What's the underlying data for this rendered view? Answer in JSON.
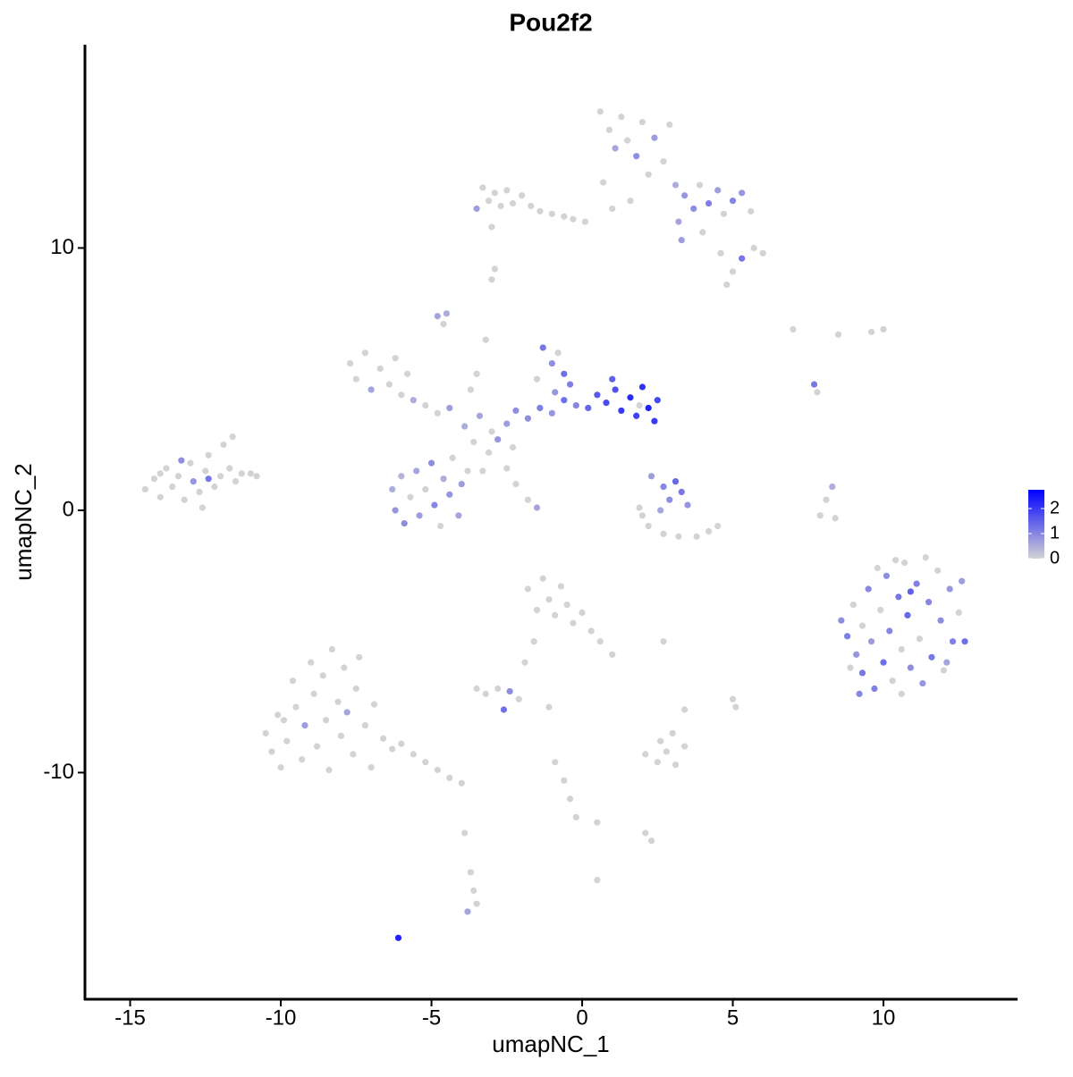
{
  "chart_data": {
    "type": "scatter",
    "title": "Pou2f2",
    "x_label": "umapNC_1",
    "y_label": "umapNC_2",
    "xlim": [
      -16.5,
      14.45
    ],
    "ylim": [
      -18.64,
      17.75
    ],
    "xticks": [
      -15,
      -10,
      -5,
      0,
      5,
      10
    ],
    "yticks": [
      -10,
      0,
      10
    ],
    "color_low": "#d3d3d3",
    "color_high": "#0000ff",
    "colorlim": [
      0,
      2.75
    ],
    "colorticks": [
      0,
      1,
      2
    ],
    "x": [
      -14.5,
      -14.2,
      -14.0,
      -13.8,
      -13.6,
      -13.4,
      -13.2,
      -13.0,
      -12.9,
      -12.7,
      -12.5,
      -12.4,
      -12.2,
      -12.0,
      -11.9,
      -11.7,
      -11.5,
      -11.3,
      -11.0,
      -10.8,
      -13.3,
      -12.6,
      -12.4,
      -14.0,
      -11.6,
      -10.5,
      -10.3,
      -10.1,
      -10.0,
      -9.8,
      -9.6,
      -9.5,
      -9.3,
      -9.2,
      -9.0,
      -8.9,
      -8.8,
      -8.6,
      -8.5,
      -8.4,
      -8.3,
      -8.1,
      -8.0,
      -7.9,
      -7.8,
      -7.6,
      -7.5,
      -7.4,
      -7.2,
      -7.0,
      -6.9,
      -6.6,
      -6.3,
      -6.0,
      -5.6,
      -5.2,
      -4.8,
      -4.4,
      -4.0,
      -9.9,
      -6.3,
      -6.2,
      -6.0,
      -5.9,
      -5.7,
      -5.5,
      -5.4,
      -5.2,
      -5.0,
      -4.9,
      -4.7,
      -4.6,
      -4.4,
      -4.3,
      -4.1,
      -4.0,
      -3.8,
      -7.7,
      -7.5,
      -7.2,
      -7.0,
      -6.7,
      -6.4,
      -6.0,
      -5.6,
      -5.2,
      -4.8,
      -4.4,
      -6.2,
      -5.8,
      -3.9,
      -3.6,
      -3.4,
      -3.1,
      -3.0,
      -2.8,
      -2.5,
      -2.3,
      -2.2,
      -3.3,
      -3.7,
      -3.2,
      -3.5,
      -1.8,
      -1.4,
      -1.0,
      -0.6,
      -0.2,
      0.2,
      0.5,
      0.8,
      1.1,
      1.3,
      1.6,
      1.8,
      2.0,
      2.2,
      2.4,
      2.5,
      1.0,
      1.9,
      -1.3,
      -1.0,
      -0.8,
      -0.6,
      -0.4,
      -1.5,
      -0.9,
      -4.8,
      -4.6,
      -4.5,
      -2.5,
      -2.2,
      -1.8,
      -1.5,
      -3.3,
      -3.1,
      -2.9,
      -2.7,
      -2.5,
      -2.3,
      -2.0,
      -1.7,
      -1.4,
      -1.0,
      -0.6,
      -0.3,
      0.1,
      -3.5,
      -3.0,
      0.6,
      0.9,
      1.1,
      1.3,
      1.5,
      1.8,
      2.0,
      2.2,
      2.4,
      2.7,
      2.9,
      3.1,
      0.7,
      1.0,
      1.6,
      3.4,
      3.7,
      3.9,
      4.2,
      4.5,
      4.7,
      5.0,
      5.3,
      5.6,
      4.0,
      3.2,
      4.6,
      5.0,
      5.3,
      5.7,
      6.0,
      4.8,
      3.3,
      -3.0,
      -2.9,
      2.3,
      2.7,
      2.9,
      3.1,
      3.3,
      3.5,
      2.6,
      2.0,
      2.2,
      2.7,
      3.2,
      3.8,
      4.2,
      4.5,
      1.9,
      8.6,
      8.8,
      9.0,
      9.1,
      9.3,
      9.3,
      9.5,
      9.6,
      9.7,
      9.9,
      10.0,
      10.1,
      10.2,
      10.3,
      10.5,
      10.6,
      10.7,
      10.8,
      10.9,
      11.1,
      11.2,
      11.3,
      11.5,
      11.6,
      11.8,
      11.9,
      12.0,
      12.2,
      12.3,
      12.5,
      12.6,
      12.7,
      9.8,
      10.4,
      11.4,
      8.9,
      10.6,
      12.1,
      9.2,
      10.9,
      -1.8,
      -1.5,
      -1.3,
      -1.1,
      -0.9,
      -0.7,
      -0.5,
      -0.3,
      0.0,
      0.3,
      0.6,
      1.0,
      -1.6,
      -1.9,
      -3.5,
      -3.2,
      -2.8,
      -2.4,
      -2.6,
      -2.1,
      -1.1,
      2.1,
      2.5,
      2.8,
      3.1,
      3.4,
      2.6,
      3.0,
      5.0,
      5.1,
      3.4,
      2.7,
      -0.9,
      -0.6,
      -0.4,
      -0.2,
      0.5,
      2.1,
      2.3,
      -3.7,
      -3.6,
      -3.5,
      -3.8,
      -3.9,
      0.5,
      -6.1,
      7.9,
      8.1,
      8.3,
      8.4,
      9.6,
      10.0,
      8.5,
      7.0,
      7.7,
      7.8
    ],
    "values": [
      0.8,
      1.2,
      0.5,
      1.6,
      0.9,
      1.3,
      0.4,
      1.8,
      1.1,
      0.7,
      1.5,
      2.1,
      0.9,
      1.3,
      2.5,
      1.6,
      1.1,
      1.4,
      1.4,
      1.3,
      1.9,
      0.1,
      1.2,
      1.4,
      2.8,
      -8.5,
      -9.2,
      -7.8,
      -9.8,
      -8.8,
      -6.5,
      -7.5,
      -9.5,
      -8.2,
      -5.8,
      -7.0,
      -9.0,
      -6.3,
      -8.0,
      -9.9,
      -5.3,
      -7.3,
      -8.6,
      -6.0,
      -7.7,
      -9.3,
      -6.8,
      -5.6,
      -8.2,
      -9.8,
      -7.4,
      -8.7,
      -9.1,
      -8.9,
      -9.3,
      -9.6,
      -9.9,
      -10.2,
      -10.4,
      -8.0,
      0.8,
      0.0,
      1.3,
      -0.5,
      0.5,
      1.5,
      -0.2,
      0.8,
      1.8,
      0.2,
      -0.6,
      1.2,
      0.6,
      2.0,
      -0.2,
      1.0,
      1.5,
      5.6,
      5.0,
      6.0,
      4.6,
      5.4,
      4.8,
      4.4,
      4.2,
      4.0,
      3.7,
      3.9,
      5.8,
      5.2,
      3.2,
      2.6,
      3.6,
      2.2,
      3.0,
      2.7,
      3.3,
      2.4,
      3.8,
      1.5,
      4.6,
      6.5,
      5.2,
      3.5,
      3.9,
      3.7,
      4.2,
      4.0,
      3.9,
      4.4,
      4.1,
      4.6,
      3.8,
      4.3,
      3.6,
      4.7,
      3.9,
      3.4,
      4.2,
      5.0,
      4.0,
      6.2,
      5.6,
      6.0,
      5.2,
      4.8,
      5.0,
      4.5,
      7.4,
      7.1,
      7.5,
      1.6,
      1.0,
      0.4,
      0.1,
      12.3,
      11.8,
      12.1,
      11.6,
      12.2,
      11.7,
      12.0,
      11.6,
      11.4,
      11.3,
      11.2,
      11.1,
      11.0,
      11.5,
      10.8,
      15.2,
      14.5,
      13.8,
      15.0,
      14.1,
      13.5,
      14.8,
      12.8,
      14.2,
      13.3,
      14.7,
      12.4,
      12.5,
      11.5,
      11.8,
      12.0,
      11.5,
      12.4,
      11.7,
      12.2,
      11.3,
      11.8,
      12.1,
      11.4,
      10.6,
      11.0,
      9.8,
      9.1,
      9.6,
      10.0,
      9.8,
      8.6,
      10.3,
      8.8,
      9.2,
      1.3,
      0.9,
      0.4,
      1.1,
      0.7,
      0.2,
      0.0,
      -0.2,
      -0.6,
      -0.9,
      -1.0,
      -1.0,
      -0.8,
      -0.6,
      0.1,
      -4.2,
      -4.8,
      -3.6,
      -5.5,
      -6.2,
      -4.4,
      -3.0,
      -5.0,
      -6.8,
      -3.8,
      -5.8,
      -2.5,
      -4.6,
      -6.5,
      -3.3,
      -5.3,
      -2.0,
      -4.0,
      -6.0,
      -2.8,
      -4.9,
      -6.6,
      -3.5,
      -5.6,
      -2.3,
      -4.2,
      -6.1,
      -3.0,
      -5.0,
      -3.9,
      -2.7,
      -5.0,
      -2.2,
      -1.9,
      -1.8,
      -6.0,
      -7.0,
      -5.8,
      -7.0,
      -3.1,
      -3.0,
      -3.8,
      -2.6,
      -3.4,
      -4.0,
      -2.9,
      -3.6,
      -4.3,
      -3.9,
      -4.6,
      -5.0,
      -5.5,
      -5.0,
      -5.8,
      -6.8,
      -7.0,
      -6.8,
      -6.9,
      -7.6,
      -7.2,
      -7.5,
      -9.3,
      -9.6,
      -9.2,
      -9.7,
      -9.0,
      -8.8,
      -8.5,
      -7.2,
      -7.5,
      -7.6,
      -5.0,
      -9.6,
      -10.3,
      -11.0,
      -11.7,
      -11.9,
      -12.3,
      -12.6,
      -13.8,
      -14.5,
      -15.0,
      -15.3,
      -12.3,
      -14.1,
      -16.3,
      -0.2,
      0.4,
      0.9,
      -0.3,
      6.8,
      6.9,
      6.7,
      6.9,
      4.8,
      4.5
    ],
    "expression": [
      0,
      0,
      0,
      0,
      0,
      0,
      0,
      0,
      0.8,
      0,
      0,
      0,
      0,
      0,
      0,
      0,
      0,
      0,
      0,
      0,
      0.9,
      0,
      1.2,
      0,
      0,
      0,
      0,
      0,
      0,
      0,
      0,
      0,
      0,
      0.7,
      0,
      0,
      0,
      0,
      0,
      0,
      0,
      0,
      0,
      0,
      0.6,
      0,
      0,
      0,
      0,
      0,
      0,
      0,
      0,
      0,
      0,
      0,
      0,
      0,
      0,
      0,
      0.5,
      0.8,
      0.4,
      0.9,
      0,
      0.6,
      0.7,
      0,
      0.9,
      1.0,
      0,
      0.5,
      0.8,
      0,
      0.6,
      0.7,
      0,
      0,
      0,
      0,
      0.6,
      0,
      0,
      0,
      0.5,
      0,
      0,
      0.7,
      0,
      0,
      0.5,
      0,
      0.6,
      0,
      0,
      0.8,
      0.7,
      0,
      0.9,
      0,
      0,
      0,
      0,
      0.9,
      1.1,
      0.8,
      1.3,
      1.0,
      1.4,
      1.6,
      1.8,
      1.7,
      2.0,
      2.2,
      1.9,
      2.1,
      2.3,
      2.0,
      1.8,
      1.5,
      0,
      1.2,
      0.9,
      0,
      1.3,
      1.1,
      0,
      0.8,
      0.6,
      0,
      0.5,
      0,
      0,
      0,
      0.6,
      0,
      0,
      0,
      0,
      0,
      0,
      0,
      0,
      0,
      0,
      0,
      0,
      0,
      0.7,
      0,
      0,
      0,
      0.6,
      0,
      0,
      0.9,
      0,
      0,
      0.7,
      0,
      0,
      0.5,
      0,
      0,
      0,
      0.8,
      0.9,
      0,
      1.1,
      0.7,
      0,
      1.0,
      0.8,
      0,
      0,
      0.6,
      0,
      0,
      1.2,
      0,
      0,
      0,
      0.7,
      0,
      0,
      0.7,
      1.0,
      0.9,
      1.4,
      1.2,
      0.8,
      0.6,
      0,
      0,
      0,
      0,
      0,
      0,
      0,
      0,
      0.9,
      1.1,
      0,
      0.8,
      1.2,
      0,
      1.0,
      0.7,
      1.1,
      0,
      1.3,
      0.9,
      1.0,
      0,
      1.2,
      0,
      0,
      1.4,
      0.9,
      1.1,
      0,
      0.8,
      1.0,
      1.2,
      0,
      0.9,
      0,
      0.8,
      1.1,
      0,
      0.7,
      1.3,
      0,
      0,
      0,
      0,
      0,
      0.6,
      1.0,
      1.5,
      0,
      0,
      0,
      0,
      0,
      0,
      0,
      0,
      0,
      0,
      0,
      0,
      0,
      0,
      0,
      0,
      0,
      0.9,
      1.3,
      0,
      0,
      0,
      0,
      0,
      0,
      0,
      0,
      0,
      0,
      0,
      0,
      0,
      0,
      0,
      0,
      0,
      0,
      0,
      0,
      0,
      0,
      0,
      0.6,
      0,
      0,
      2.3,
      0,
      0,
      0.5,
      0,
      0,
      0,
      0,
      0,
      1.2,
      0
    ]
  }
}
